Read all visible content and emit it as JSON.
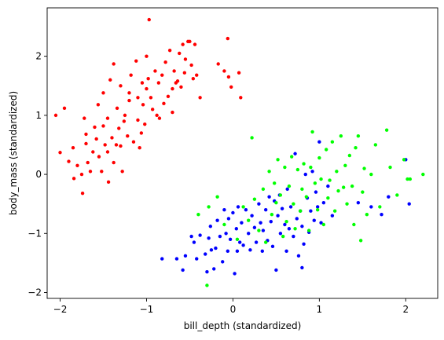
{
  "chart_data": {
    "type": "scatter",
    "title": "",
    "xlabel": "bill_depth (standardized)",
    "ylabel": "body_mass (standardized)",
    "xlim": [
      -2.15,
      2.37
    ],
    "ylim": [
      -2.1,
      2.82
    ],
    "xticks": [
      -2,
      -1,
      0,
      1,
      2
    ],
    "yticks": [
      -2,
      -1,
      0,
      1,
      2
    ],
    "grid": false,
    "colors": [
      "#ff0000",
      "#0000ff",
      "#00ff00"
    ],
    "series": [
      {
        "points": [
          [
            -2.05,
            1.0
          ],
          [
            -2.0,
            0.37
          ],
          [
            -1.95,
            1.12
          ],
          [
            -1.9,
            0.22
          ],
          [
            -1.85,
            0.45
          ],
          [
            -1.84,
            -0.07
          ],
          [
            -1.8,
            0.15
          ],
          [
            -1.75,
            0.0
          ],
          [
            -1.74,
            -0.32
          ],
          [
            -1.72,
            0.95
          ],
          [
            -1.7,
            0.68
          ],
          [
            -1.7,
            0.52
          ],
          [
            -1.68,
            0.2
          ],
          [
            -1.65,
            0.05
          ],
          [
            -1.62,
            0.38
          ],
          [
            -1.6,
            0.8
          ],
          [
            -1.58,
            0.6
          ],
          [
            -1.56,
            1.18
          ],
          [
            -1.55,
            0.3
          ],
          [
            -1.52,
            0.05
          ],
          [
            -1.5,
            0.82
          ],
          [
            -1.5,
            1.38
          ],
          [
            -1.48,
            0.5
          ],
          [
            -1.45,
            0.95
          ],
          [
            -1.45,
            0.38
          ],
          [
            -1.44,
            -0.13
          ],
          [
            -1.42,
            1.6
          ],
          [
            -1.4,
            0.62
          ],
          [
            -1.38,
            0.2
          ],
          [
            -1.38,
            1.87
          ],
          [
            -1.35,
            0.5
          ],
          [
            -1.34,
            1.12
          ],
          [
            -1.32,
            0.78
          ],
          [
            -1.3,
            1.5
          ],
          [
            -1.3,
            0.48
          ],
          [
            -1.28,
            0.05
          ],
          [
            -1.26,
            0.9
          ],
          [
            -1.25,
            1.0
          ],
          [
            -1.22,
            0.65
          ],
          [
            -1.2,
            1.25
          ],
          [
            -1.2,
            1.38
          ],
          [
            -1.18,
            1.68
          ],
          [
            -1.15,
            0.55
          ],
          [
            -1.12,
            1.92
          ],
          [
            -1.1,
            0.92
          ],
          [
            -1.1,
            1.3
          ],
          [
            -1.08,
            0.45
          ],
          [
            -1.06,
            0.7
          ],
          [
            -1.05,
            1.55
          ],
          [
            -1.04,
            1.18
          ],
          [
            -1.02,
            0.85
          ],
          [
            -1.0,
            1.45
          ],
          [
            -1.0,
            2.0
          ],
          [
            -0.98,
            1.62
          ],
          [
            -0.97,
            2.62
          ],
          [
            -0.95,
            1.3
          ],
          [
            -0.93,
            1.1
          ],
          [
            -0.9,
            1.75
          ],
          [
            -0.88,
            1.0
          ],
          [
            -0.86,
            1.55
          ],
          [
            -0.85,
            0.95
          ],
          [
            -0.82,
            1.68
          ],
          [
            -0.8,
            1.2
          ],
          [
            -0.78,
            1.9
          ],
          [
            -0.75,
            1.32
          ],
          [
            -0.73,
            2.1
          ],
          [
            -0.7,
            1.05
          ],
          [
            -0.7,
            1.45
          ],
          [
            -0.68,
            1.75
          ],
          [
            -0.66,
            1.55
          ],
          [
            -0.64,
            1.58
          ],
          [
            -0.62,
            2.05
          ],
          [
            -0.6,
            1.48
          ],
          [
            -0.58,
            2.2
          ],
          [
            -0.56,
            1.72
          ],
          [
            -0.55,
            1.95
          ],
          [
            -0.52,
            2.25
          ],
          [
            -0.5,
            2.25
          ],
          [
            -0.48,
            1.85
          ],
          [
            -0.46,
            1.62
          ],
          [
            -0.44,
            2.2
          ],
          [
            -0.42,
            1.68
          ],
          [
            -0.38,
            1.3
          ],
          [
            -0.17,
            1.87
          ],
          [
            -0.1,
            1.75
          ],
          [
            -0.06,
            2.3
          ],
          [
            -0.05,
            1.65
          ],
          [
            -0.02,
            1.48
          ],
          [
            0.07,
            1.72
          ],
          [
            0.09,
            1.3
          ]
        ]
      },
      {
        "points": [
          [
            -0.82,
            -1.43
          ],
          [
            -0.65,
            -1.43
          ],
          [
            -0.58,
            -1.62
          ],
          [
            -0.55,
            -1.38
          ],
          [
            -0.48,
            -1.05
          ],
          [
            -0.45,
            -1.15
          ],
          [
            -0.42,
            -1.43
          ],
          [
            -0.38,
            -1.03
          ],
          [
            -0.32,
            -1.35
          ],
          [
            -0.3,
            -1.65
          ],
          [
            -0.28,
            -1.08
          ],
          [
            -0.26,
            -0.88
          ],
          [
            -0.25,
            -1.28
          ],
          [
            -0.22,
            -1.6
          ],
          [
            -0.2,
            -1.25
          ],
          [
            -0.18,
            -0.78
          ],
          [
            -0.15,
            -1.05
          ],
          [
            -0.12,
            -1.48
          ],
          [
            -0.1,
            -0.6
          ],
          [
            -0.08,
            -1.0
          ],
          [
            -0.06,
            -1.3
          ],
          [
            -0.05,
            -0.75
          ],
          [
            -0.03,
            -1.1
          ],
          [
            0.0,
            -0.65
          ],
          [
            0.02,
            -1.68
          ],
          [
            0.04,
            -0.92
          ],
          [
            0.05,
            -1.3
          ],
          [
            0.06,
            -0.55
          ],
          [
            0.08,
            -1.15
          ],
          [
            0.1,
            -0.82
          ],
          [
            0.12,
            -1.2
          ],
          [
            0.15,
            -0.6
          ],
          [
            0.18,
            -1.0
          ],
          [
            0.2,
            -1.28
          ],
          [
            0.22,
            -0.7
          ],
          [
            0.25,
            -0.9
          ],
          [
            0.27,
            -1.15
          ],
          [
            0.3,
            -0.5
          ],
          [
            0.32,
            -0.82
          ],
          [
            0.34,
            -1.3
          ],
          [
            0.35,
            -0.95
          ],
          [
            0.38,
            -0.6
          ],
          [
            0.4,
            -1.12
          ],
          [
            0.42,
            -0.38
          ],
          [
            0.44,
            -0.8
          ],
          [
            0.46,
            -1.22
          ],
          [
            0.48,
            -0.45
          ],
          [
            0.5,
            -1.62
          ],
          [
            0.52,
            -0.7
          ],
          [
            0.54,
            -0.35
          ],
          [
            0.55,
            -1.0
          ],
          [
            0.57,
            -0.58
          ],
          [
            0.6,
            -0.85
          ],
          [
            0.62,
            -1.3
          ],
          [
            0.63,
            -0.25
          ],
          [
            0.65,
            -0.92
          ],
          [
            0.67,
            -0.55
          ],
          [
            0.7,
            -1.05
          ],
          [
            0.72,
            0.35
          ],
          [
            0.74,
            -0.75
          ],
          [
            0.76,
            -1.38
          ],
          [
            0.78,
            -0.62
          ],
          [
            0.8,
            -1.58
          ],
          [
            0.8,
            -0.88
          ],
          [
            0.82,
            -1.18
          ],
          [
            0.84,
            0.0
          ],
          [
            0.86,
            -0.4
          ],
          [
            0.88,
            -0.98
          ],
          [
            0.9,
            -0.62
          ],
          [
            0.92,
            0.05
          ],
          [
            0.94,
            -0.78
          ],
          [
            0.96,
            -0.3
          ],
          [
            0.98,
            -0.55
          ],
          [
            1.0,
            0.55
          ],
          [
            1.02,
            -0.82
          ],
          [
            1.05,
            -0.48
          ],
          [
            1.1,
            -0.2
          ],
          [
            1.15,
            -0.7
          ],
          [
            1.45,
            -0.48
          ],
          [
            1.6,
            -0.55
          ],
          [
            1.72,
            -0.68
          ],
          [
            1.8,
            -0.38
          ],
          [
            2.0,
            0.25
          ],
          [
            2.04,
            -0.5
          ]
        ]
      },
      {
        "points": [
          [
            -0.4,
            -0.68
          ],
          [
            -0.3,
            -1.88
          ],
          [
            -0.28,
            -0.55
          ],
          [
            -0.18,
            -0.38
          ],
          [
            -0.1,
            -0.85
          ],
          [
            0.05,
            -1.1
          ],
          [
            0.12,
            -0.55
          ],
          [
            0.18,
            -0.78
          ],
          [
            0.22,
            0.62
          ],
          [
            0.25,
            -0.42
          ],
          [
            0.3,
            -0.95
          ],
          [
            0.35,
            -0.25
          ],
          [
            0.38,
            -1.15
          ],
          [
            0.42,
            0.05
          ],
          [
            0.45,
            -0.68
          ],
          [
            0.48,
            -0.15
          ],
          [
            0.5,
            -0.48
          ],
          [
            0.52,
            0.25
          ],
          [
            0.55,
            -0.35
          ],
          [
            0.58,
            -1.05
          ],
          [
            0.6,
            0.12
          ],
          [
            0.62,
            -0.8
          ],
          [
            0.65,
            -0.2
          ],
          [
            0.68,
            0.3
          ],
          [
            0.7,
            -0.5
          ],
          [
            0.72,
            -0.92
          ],
          [
            0.75,
            0.08
          ],
          [
            0.78,
            -0.62
          ],
          [
            0.8,
            -0.25
          ],
          [
            0.82,
            0.18
          ],
          [
            0.85,
            -0.38
          ],
          [
            0.88,
            -0.95
          ],
          [
            0.9,
            0.12
          ],
          [
            0.92,
            0.72
          ],
          [
            0.95,
            -0.15
          ],
          [
            0.98,
            -0.6
          ],
          [
            1.0,
            0.28
          ],
          [
            1.02,
            -0.08
          ],
          [
            1.05,
            -0.85
          ],
          [
            1.08,
            0.42
          ],
          [
            1.1,
            -0.4
          ],
          [
            1.12,
            -0.1
          ],
          [
            1.15,
            0.55
          ],
          [
            1.18,
            -0.62
          ],
          [
            1.2,
            0.05
          ],
          [
            1.22,
            -0.28
          ],
          [
            1.25,
            0.65
          ],
          [
            1.28,
            -0.22
          ],
          [
            1.3,
            0.15
          ],
          [
            1.32,
            -0.5
          ],
          [
            1.35,
            0.32
          ],
          [
            1.38,
            -0.2
          ],
          [
            1.4,
            -0.85
          ],
          [
            1.42,
            0.45
          ],
          [
            1.45,
            0.65
          ],
          [
            1.48,
            -1.12
          ],
          [
            1.5,
            -0.3
          ],
          [
            1.52,
            0.1
          ],
          [
            1.55,
            -0.68
          ],
          [
            1.6,
            0.0
          ],
          [
            1.65,
            0.5
          ],
          [
            1.7,
            -0.55
          ],
          [
            1.78,
            0.75
          ],
          [
            1.82,
            0.12
          ],
          [
            1.9,
            -0.35
          ],
          [
            1.98,
            0.25
          ],
          [
            2.02,
            -0.08
          ],
          [
            2.05,
            -0.08
          ],
          [
            2.2,
            0.0
          ]
        ]
      }
    ]
  }
}
